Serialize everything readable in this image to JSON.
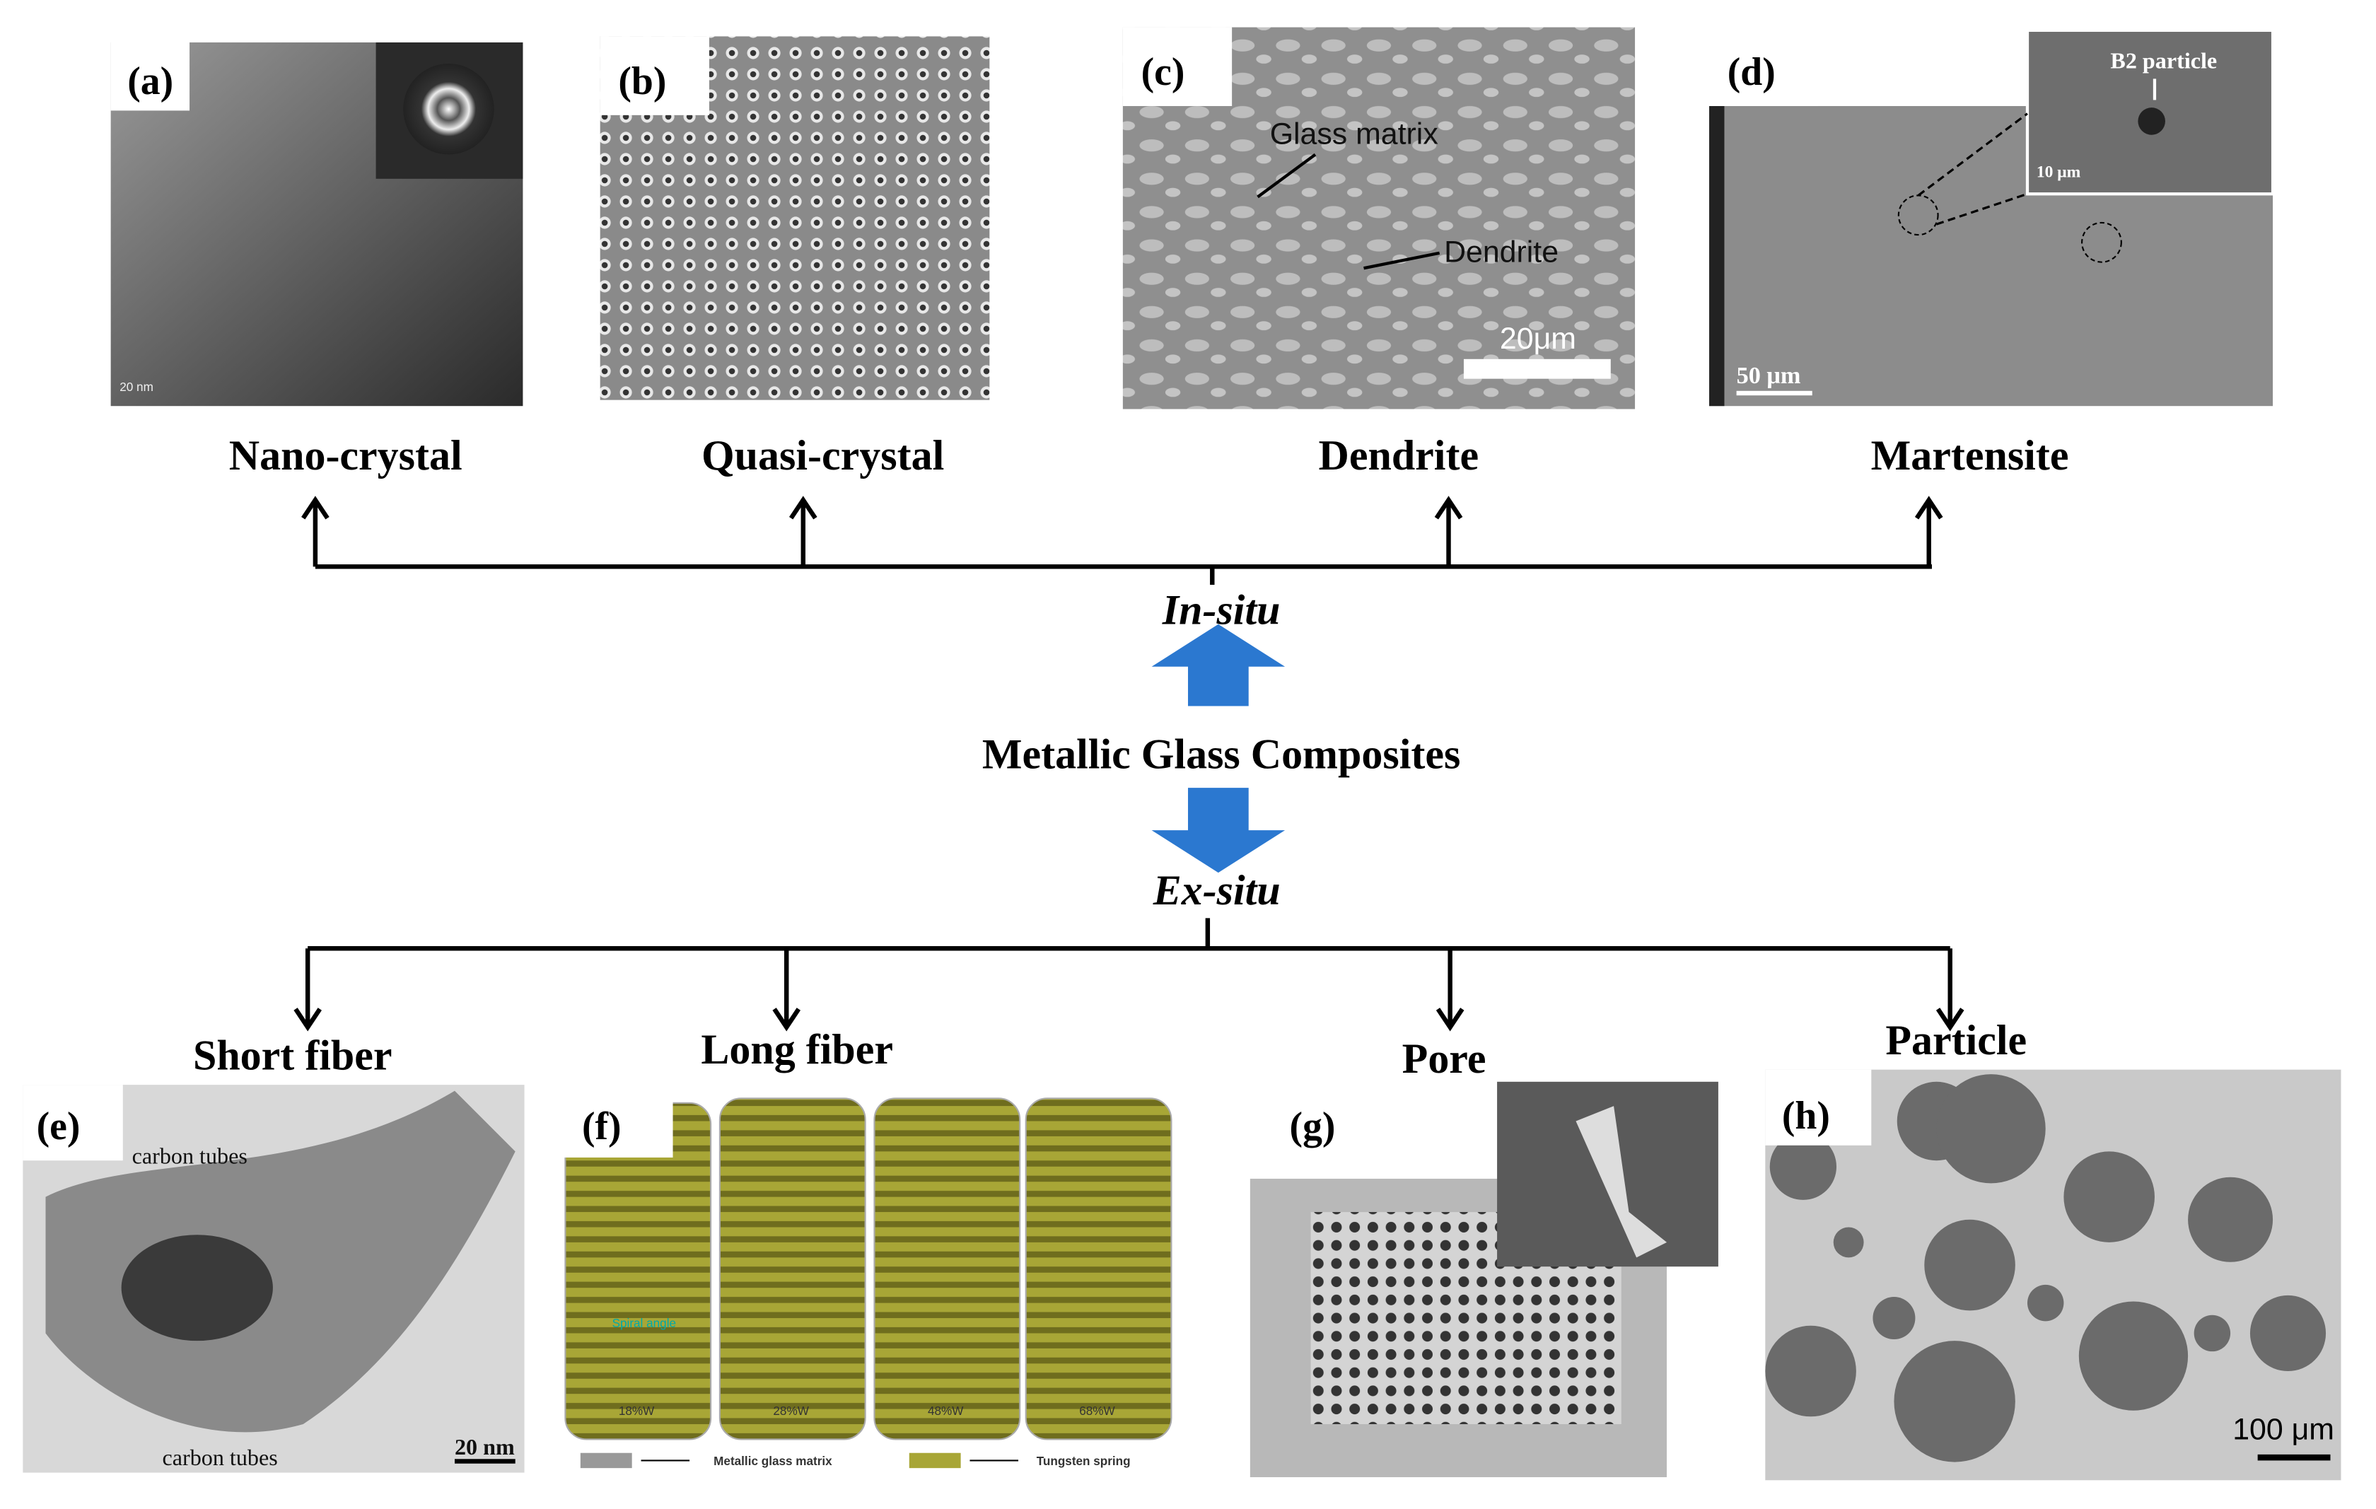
{
  "center": {
    "title": "Metallic Glass Composites",
    "in_situ": "In-situ",
    "ex_situ": "Ex-situ"
  },
  "in_situ_panels": [
    {
      "label": "(a)",
      "name": "Nano-crystal",
      "scale": "20 nm"
    },
    {
      "label": "(b)",
      "name": "Quasi-crystal"
    },
    {
      "label": "(c)",
      "name": "Dendrite",
      "annotations": [
        "Glass matrix",
        "Dendrite"
      ],
      "scale": "20μm"
    },
    {
      "label": "(d)",
      "name": "Martensite",
      "annotations": [
        "B2 particle"
      ],
      "inset_scale": "10 μm",
      "scale": "50 μm"
    }
  ],
  "ex_situ_panels": [
    {
      "label": "(e)",
      "name": "Short fiber",
      "annotations": [
        "carbon tubes",
        "carbon tubes"
      ],
      "scale": "20 nm"
    },
    {
      "label": "(f)",
      "name": "Long fiber",
      "annotations": [
        "Spiral angle",
        "18%W",
        "28%W",
        "48%W",
        "68%W"
      ],
      "legend": [
        "Metallic glass matrix",
        "Tungsten spring"
      ]
    },
    {
      "label": "(g)",
      "name": "Pore"
    },
    {
      "label": "(h)",
      "name": "Particle",
      "scale": "100 μm"
    }
  ]
}
